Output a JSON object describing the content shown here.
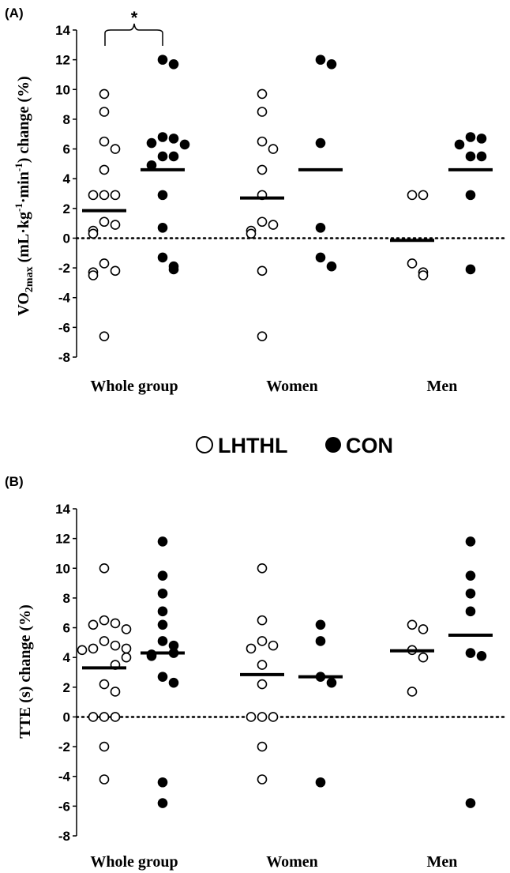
{
  "legend": {
    "items": [
      {
        "label": "LHTHL",
        "marker": "open-circle"
      },
      {
        "label": "CON",
        "marker": "filled-circle"
      }
    ]
  },
  "colors": {
    "ink": "#000000",
    "background": "#ffffff"
  },
  "chart_data": [
    {
      "type": "scatter",
      "panel_label": "(A)",
      "ylabel_parts": [
        "VO",
        "2max",
        " (mL·kg",
        "-1",
        "·min",
        "-1",
        ") change (%)"
      ],
      "ylim": [
        -8,
        14
      ],
      "yticks": [
        -8,
        -6,
        -4,
        -2,
        0,
        2,
        4,
        6,
        8,
        10,
        12,
        14
      ],
      "zero_line": "dotted",
      "categories": [
        "Whole group",
        "Women",
        "Men"
      ],
      "series": [
        {
          "name": "LHTHL",
          "marker": "open",
          "points": [
            [
              9.7,
              8.5,
              6.5,
              6.0,
              4.6,
              2.9,
              2.9,
              2.9,
              1.1,
              0.9,
              0.5,
              0.3,
              -1.7,
              -2.2,
              -2.3,
              -2.5,
              -6.6
            ],
            [
              9.7,
              8.5,
              6.5,
              6.0,
              4.6,
              2.9,
              1.1,
              0.9,
              0.5,
              0.3,
              -2.2,
              -6.6
            ],
            [
              2.9,
              2.9,
              -1.7,
              -2.3,
              -2.5
            ]
          ],
          "means": [
            1.85,
            2.7,
            -0.15
          ]
        },
        {
          "name": "CON",
          "marker": "filled",
          "points": [
            [
              12.0,
              11.7,
              6.8,
              6.7,
              6.4,
              6.3,
              5.5,
              5.5,
              4.9,
              2.9,
              0.7,
              -1.3,
              -1.9,
              -2.1
            ],
            [
              12.0,
              11.7,
              6.4,
              0.7,
              -1.3,
              -1.9
            ],
            [
              6.8,
              6.7,
              6.3,
              5.5,
              5.5,
              2.9,
              -2.1
            ]
          ],
          "means": [
            4.6,
            4.6,
            4.6
          ]
        }
      ],
      "annotations": [
        {
          "text": "*",
          "type": "significance-bracket",
          "category": "Whole group"
        }
      ]
    },
    {
      "type": "scatter",
      "panel_label": "(B)",
      "ylabel_parts": [
        "TTE (s) change (%)"
      ],
      "ylim": [
        -8,
        14
      ],
      "yticks": [
        -8,
        -6,
        -4,
        -2,
        0,
        2,
        4,
        6,
        8,
        10,
        12,
        14
      ],
      "zero_line": "dotted",
      "categories": [
        "Whole group",
        "Women",
        "Men"
      ],
      "series": [
        {
          "name": "LHTHL",
          "marker": "open",
          "points": [
            [
              10.0,
              6.5,
              6.3,
              6.2,
              5.9,
              5.1,
              4.8,
              4.6,
              4.6,
              4.5,
              4.0,
              3.5,
              2.2,
              1.7,
              0.0,
              0.0,
              0.0,
              -2.0,
              -4.2
            ],
            [
              10.0,
              6.5,
              5.1,
              4.8,
              4.6,
              3.5,
              2.2,
              0.0,
              0.0,
              0.0,
              -2.0,
              -4.2
            ],
            [
              6.2,
              5.9,
              4.5,
              4.0,
              1.7
            ]
          ],
          "means": [
            3.3,
            2.85,
            4.45
          ]
        },
        {
          "name": "CON",
          "marker": "filled",
          "points": [
            [
              11.8,
              9.5,
              8.3,
              7.1,
              6.2,
              5.1,
              4.8,
              4.3,
              4.2,
              4.1,
              2.7,
              2.3,
              -4.4,
              -5.8
            ],
            [
              6.2,
              5.1,
              2.7,
              2.3,
              -4.4
            ],
            [
              11.8,
              9.5,
              8.3,
              7.1,
              4.3,
              4.1,
              -5.8
            ]
          ],
          "means": [
            4.3,
            2.7,
            5.5
          ]
        }
      ]
    }
  ]
}
